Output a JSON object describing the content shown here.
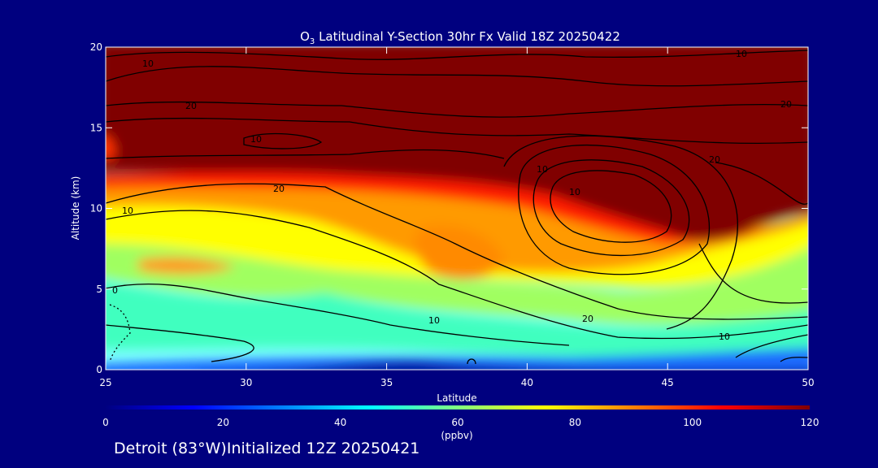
{
  "chart_data": {
    "type": "heatmap",
    "title_parts": {
      "species": "O",
      "sub": "3",
      "rest": " Latitudinal Y-Section 30hr  Fx Valid 18Z 20250422"
    },
    "xlabel": "Latitude",
    "ylabel": "Altitude (km)",
    "xlim": [
      25,
      50
    ],
    "ylim": [
      0,
      20
    ],
    "x_ticks": [
      "25",
      "30",
      "35",
      "40",
      "45",
      "50"
    ],
    "y_ticks": [
      "0",
      "5",
      "10",
      "15",
      "20"
    ],
    "colorbar": {
      "ticks": [
        "0",
        "20",
        "40",
        "60",
        "80",
        "100",
        "120"
      ],
      "unit": "(ppbv)",
      "range": [
        0,
        120
      ],
      "colors": [
        "#000080",
        "#0000ff",
        "#0080ff",
        "#00ffff",
        "#80ff80",
        "#ffff00",
        "#ff8000",
        "#ff0000",
        "#800000"
      ]
    },
    "contour_labels": [
      "10",
      "20",
      "10",
      "10",
      "20",
      "20",
      "10",
      "10",
      "20",
      "10",
      "0",
      "10",
      "20",
      "10",
      "0"
    ],
    "footer": "Detroit (83°W)Initialized 12Z 20250421"
  }
}
